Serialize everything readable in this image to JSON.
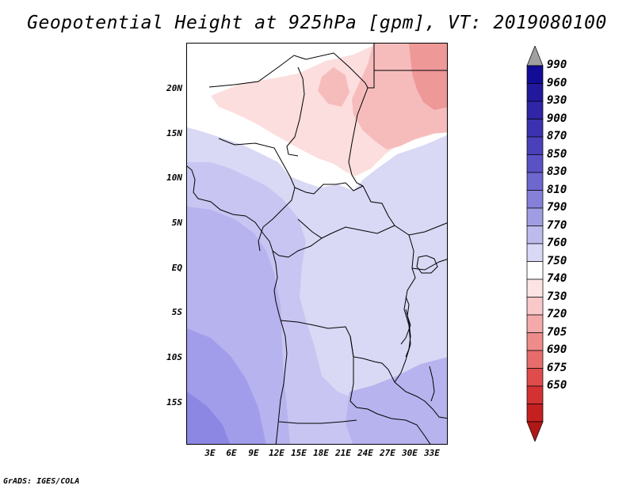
{
  "title": "Geopotential Height at 925hPa [gpm], VT: 2019080100",
  "footer": "GrADS: IGES/COLA",
  "lat_labels": [
    "20N",
    "15N",
    "10N",
    "5N",
    "EQ",
    "5S",
    "10S",
    "15S"
  ],
  "lon_labels": [
    "3E",
    "6E",
    "9E",
    "12E",
    "15E",
    "18E",
    "21E",
    "24E",
    "27E",
    "30E",
    "33E"
  ],
  "colorbar": {
    "labels": [
      "990",
      "960",
      "930",
      "900",
      "870",
      "850",
      "830",
      "810",
      "790",
      "770",
      "760",
      "750",
      "740",
      "730",
      "720",
      "705",
      "690",
      "675",
      "650"
    ],
    "colors": {
      "top_arrow": "#a0a0a0",
      "bottom_arrow": "#b01818",
      "blues": [
        "#120c96",
        "#22189e",
        "#2f25a6",
        "#3c32b0",
        "#4a41ba",
        "#5a52c4",
        "#6e67ce",
        "#8680d8",
        "#a19de2",
        "#bdbaec",
        "#d9d8f5"
      ],
      "white": "#ffffff",
      "reds": [
        "#fde4e4",
        "#f9c8c8",
        "#f4aaaa",
        "#ee8c8c",
        "#e76c6c",
        "#df4c4c",
        "#d43232",
        "#c52020"
      ]
    }
  },
  "map": {
    "colors": {
      "pale_blue": "#d9d8f5",
      "light_blue": "#c8c5f2",
      "mid_blue": "#b7b3ee",
      "deep_blue": "#a29deb",
      "deeper_blue": "#8d87e4",
      "white": "#ffffff",
      "pink": "#fcdede",
      "light_red": "#f6bcbc",
      "red": "#ee9898",
      "border": "#000000"
    }
  }
}
